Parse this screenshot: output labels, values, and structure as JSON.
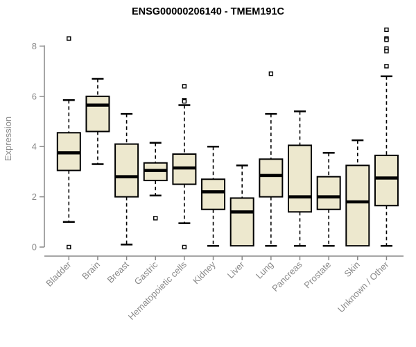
{
  "chart_data": {
    "type": "boxplot",
    "title": "ENSG00000206140 - TMEM191C",
    "ylabel": "Expression",
    "xlabel": "",
    "ylim": [
      0,
      8.7
    ],
    "yticks": [
      0,
      2,
      4,
      6,
      8
    ],
    "grid": false,
    "legend": false,
    "colors": {
      "box_fill": "#EDE8CE",
      "box_border": "#000000",
      "median": "#000000",
      "whisker": "#000000",
      "outlier_stroke": "#000000",
      "outlier_fill": "#ffffff",
      "axis": "#888888",
      "tick_label": "#8A8A8A",
      "title": "#000000"
    },
    "categories": [
      "Bladder",
      "Brain",
      "Breast",
      "Gastric",
      "Hematopoietic cells",
      "Kidney",
      "Liver",
      "Lung",
      "Pancreas",
      "Prostate",
      "Skin",
      "Unknown / Other"
    ],
    "boxes": [
      {
        "category": "Bladder",
        "whisker_low": 1.0,
        "q1": 3.05,
        "median": 3.75,
        "q3": 4.55,
        "whisker_high": 5.85,
        "outliers": [
          8.3,
          0.0
        ]
      },
      {
        "category": "Brain",
        "whisker_low": 3.3,
        "q1": 4.6,
        "median": 5.65,
        "q3": 6.0,
        "whisker_high": 6.7,
        "outliers": []
      },
      {
        "category": "Breast",
        "whisker_low": 0.1,
        "q1": 2.0,
        "median": 2.8,
        "q3": 4.1,
        "whisker_high": 5.3,
        "outliers": []
      },
      {
        "category": "Gastric",
        "whisker_low": 2.05,
        "q1": 2.65,
        "median": 3.05,
        "q3": 3.35,
        "whisker_high": 4.15,
        "outliers": [
          1.15
        ]
      },
      {
        "category": "Hematopoietic cells",
        "whisker_low": 0.95,
        "q1": 2.5,
        "median": 3.15,
        "q3": 3.7,
        "whisker_high": 5.65,
        "outliers": [
          6.4,
          5.85,
          5.8,
          0.0
        ]
      },
      {
        "category": "Kidney",
        "whisker_low": 0.05,
        "q1": 1.5,
        "median": 2.2,
        "q3": 2.7,
        "whisker_high": 4.0,
        "outliers": []
      },
      {
        "category": "Liver",
        "whisker_low": 0.05,
        "q1": 0.05,
        "median": 1.4,
        "q3": 1.95,
        "whisker_high": 3.25,
        "outliers": []
      },
      {
        "category": "Lung",
        "whisker_low": 0.05,
        "q1": 2.0,
        "median": 2.85,
        "q3": 3.5,
        "whisker_high": 5.3,
        "outliers": [
          6.9
        ]
      },
      {
        "category": "Pancreas",
        "whisker_low": 0.05,
        "q1": 1.4,
        "median": 2.0,
        "q3": 4.05,
        "whisker_high": 5.4,
        "outliers": []
      },
      {
        "category": "Prostate",
        "whisker_low": 0.05,
        "q1": 1.5,
        "median": 2.0,
        "q3": 2.8,
        "whisker_high": 3.75,
        "outliers": []
      },
      {
        "category": "Skin",
        "whisker_low": 0.05,
        "q1": 0.05,
        "median": 1.8,
        "q3": 3.25,
        "whisker_high": 4.25,
        "outliers": []
      },
      {
        "category": "Unknown / Other",
        "whisker_low": 0.05,
        "q1": 1.65,
        "median": 2.75,
        "q3": 3.65,
        "whisker_high": 6.8,
        "outliers": [
          8.65,
          8.3,
          8.25,
          7.9,
          7.8,
          7.2
        ]
      }
    ]
  }
}
